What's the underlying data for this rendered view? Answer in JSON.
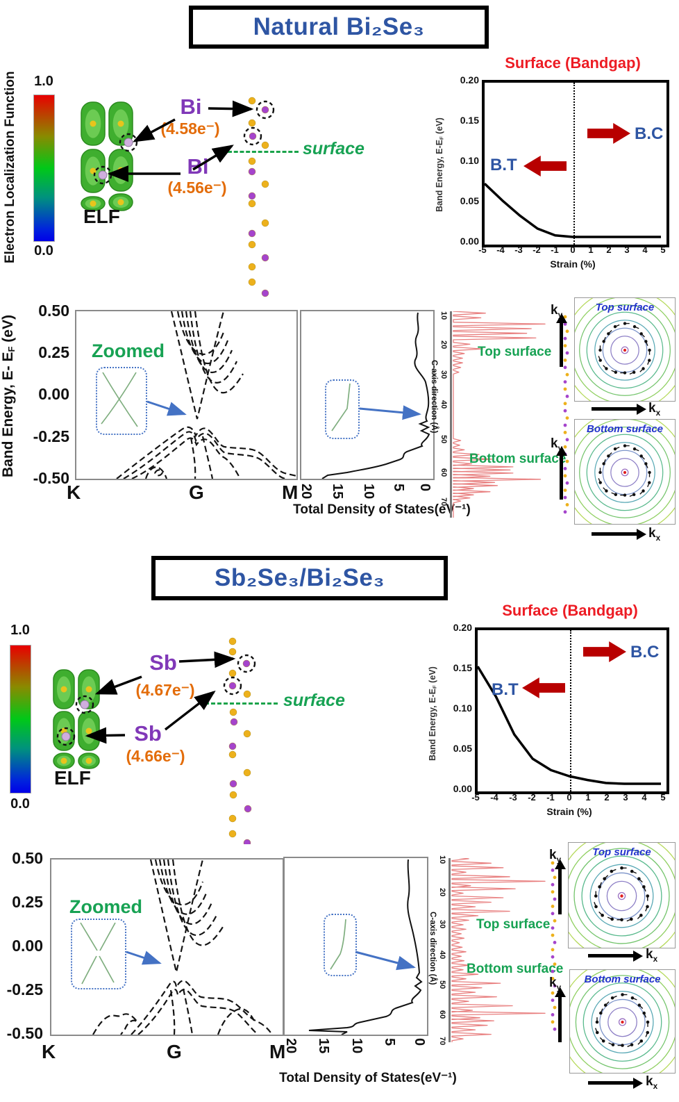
{
  "colors": {
    "accent_blue": "#2e55a3",
    "title_red": "#ed1c24",
    "arrow_red": "#b80000",
    "green": "#17a253",
    "element_purple": "#8038b8",
    "charge_orange": "#e36c09",
    "curve_salmon": "#e87f7f",
    "inset_blue": "#4472c4",
    "atom_yellow": "#edb11c",
    "atom_purple": "#a544cc"
  },
  "chart_data": [
    {
      "id": "strain_bandgap_natural",
      "type": "line",
      "title": "Surface (Bandgap)",
      "xlabel": "Strain (%)",
      "ylabel": "Band Energy, E-EF (eV)",
      "xlim": [
        -5,
        5
      ],
      "ylim": [
        0,
        0.2
      ],
      "grid": false,
      "x": [
        -5,
        -4,
        -3,
        -2,
        -1,
        0,
        1,
        2,
        3,
        4,
        5
      ],
      "y": [
        0.07,
        0.048,
        0.028,
        0.011,
        0.002,
        0,
        0,
        0,
        0,
        0,
        0
      ]
    },
    {
      "id": "strain_bandgap_hetero",
      "type": "line",
      "title": "Surface (Bandgap)",
      "xlabel": "Strain (%)",
      "ylabel": "Band Energy, E-EF (eV)",
      "xlim": [
        -5,
        5
      ],
      "ylim": [
        0,
        0.2
      ],
      "grid": false,
      "x": [
        -5,
        -4,
        -3,
        -2,
        -1,
        0,
        1,
        2,
        3,
        4,
        5
      ],
      "y": [
        0.155,
        0.115,
        0.065,
        0.033,
        0.018,
        0.01,
        0.005,
        0.001,
        0,
        0,
        0
      ]
    },
    {
      "id": "band_structure_natural",
      "type": "line",
      "xticklabels": [
        "K",
        "G",
        "M"
      ],
      "ylim": [
        -0.5,
        0.5
      ],
      "ylabel": "Band Energy, E- EF (eV)",
      "note": "dashed bulk bands; Dirac crossing of surface states at G near -0.14 eV"
    },
    {
      "id": "band_structure_hetero",
      "type": "line",
      "xticklabels": [
        "K",
        "G",
        "M"
      ],
      "ylim": [
        -0.5,
        0.5
      ],
      "note": "dashed bulk bands; small-gap Dirac cone of surface states at G near -0.14 eV"
    },
    {
      "id": "dos_natural",
      "type": "line",
      "xlabel": "Total Density of States(eV⁻¹)",
      "xlim": [
        20,
        0
      ],
      "note": "DOS vs energy, axis reversed (20 left, 0 right); minimum near Dirac point"
    },
    {
      "id": "dos_hetero",
      "type": "line",
      "xlabel": "Total Density of States(eV⁻¹)",
      "xlim": [
        20,
        0
      ],
      "note": "DOS vs energy, axis reversed (20 left, 0 right); minimum near Dirac point"
    },
    {
      "id": "charge_caxis_natural",
      "type": "line",
      "ylabel": "C-axis direction (Å)",
      "ylim": [
        8,
        70
      ],
      "annotations": [
        "Top surface",
        "Bottom surface"
      ],
      "peaks_A_amp": [
        [
          9,
          0.35
        ],
        [
          10.5,
          0.3
        ],
        [
          12.5,
          1.0
        ],
        [
          14,
          0.85
        ],
        [
          15.5,
          0.8
        ],
        [
          17,
          0.9
        ],
        [
          19,
          0.18
        ],
        [
          20.5,
          0.32
        ],
        [
          22,
          0.12
        ],
        [
          23.5,
          0.1
        ],
        [
          25,
          0.1
        ],
        [
          26.5,
          0.08
        ],
        [
          28,
          0.06
        ],
        [
          50,
          0.08
        ],
        [
          51.5,
          0.07
        ],
        [
          53,
          0.12
        ],
        [
          54.5,
          0.28
        ],
        [
          56,
          0.42
        ],
        [
          57.5,
          0.2
        ],
        [
          58.5,
          0.65
        ],
        [
          59.5,
          0.62
        ],
        [
          60.5,
          0.65
        ],
        [
          61.5,
          0.4
        ],
        [
          62.5,
          0.95
        ],
        [
          63.5,
          0.45
        ],
        [
          64.5,
          0.48
        ],
        [
          65.5,
          0.22
        ],
        [
          66.5,
          0.4
        ],
        [
          67.5,
          0.22
        ],
        [
          68.5,
          0.18
        ],
        [
          69.5,
          0.08
        ]
      ]
    },
    {
      "id": "charge_caxis_hetero",
      "type": "line",
      "ylabel": "C-axis direction (Å)",
      "ylim": [
        9,
        70
      ],
      "annotations": [
        "Top surface",
        "Bottom surface"
      ],
      "peaks_A_amp": [
        [
          9.5,
          0.18
        ],
        [
          11,
          0.42
        ],
        [
          12.5,
          0.55
        ],
        [
          14,
          0.15
        ],
        [
          15.5,
          0.62
        ],
        [
          17,
          1.0
        ],
        [
          18.5,
          0.2
        ],
        [
          19.5,
          0.68
        ],
        [
          21,
          0.12
        ],
        [
          22.5,
          0.55
        ],
        [
          24,
          0.42
        ],
        [
          25.5,
          0.25
        ],
        [
          27,
          0.62
        ],
        [
          28.5,
          0.28
        ],
        [
          30,
          0.18
        ],
        [
          31.5,
          0.12
        ],
        [
          33,
          0.15
        ],
        [
          34.5,
          0.1
        ],
        [
          36,
          0.13
        ],
        [
          37.5,
          0.08
        ],
        [
          39,
          0.11
        ],
        [
          40.5,
          0.15
        ],
        [
          42,
          0.1
        ],
        [
          43.5,
          0.13
        ],
        [
          45,
          0.18
        ],
        [
          46.5,
          0.12
        ],
        [
          48,
          0.28
        ],
        [
          49.5,
          0.15
        ],
        [
          51,
          0.52
        ],
        [
          52.5,
          0.32
        ],
        [
          54,
          0.25
        ],
        [
          55.5,
          0.48
        ],
        [
          57,
          0.18
        ],
        [
          58.5,
          0.65
        ],
        [
          60,
          0.22
        ],
        [
          61,
          1.0
        ],
        [
          62.5,
          0.3
        ],
        [
          63.5,
          0.45
        ],
        [
          65,
          0.38
        ],
        [
          66.5,
          0.25
        ],
        [
          68,
          0.42
        ],
        [
          69.5,
          0.12
        ]
      ]
    }
  ],
  "sections": [
    {
      "title": "Natural Bi₂Se₃",
      "elf": {
        "axis_label": "Electron Localization Function",
        "cb_max": "1.0",
        "cb_min": "0.0",
        "label": "ELF",
        "atom1_symbol": "Bi",
        "atom1_charge": "(4.58e⁻)",
        "atom2_symbol": "Bi",
        "atom2_charge": "(4.56e⁻)",
        "surface_label": "surface"
      },
      "strain": {
        "title": "Surface (Bandgap)",
        "ylabel_pre": "Band Energy, E-E",
        "ylabel_sub": "F",
        "ylabel_post": " (eV)",
        "xlabel": "Strain (%)",
        "yticks": [
          "0.20",
          "0.15",
          "0.10",
          "0.05",
          "0.00"
        ],
        "xticks": [
          "-5",
          "-4",
          "-3",
          "-2",
          "-1",
          "0",
          "1",
          "2",
          "3",
          "4",
          "5"
        ],
        "left_label": "B.T",
        "right_label": "B.C"
      },
      "band": {
        "ylabel_pre": "Band Energy, E- E",
        "ylabel_sub": "F",
        "ylabel_post": " (eV)",
        "yticks": [
          "0.50",
          "0.25",
          "0.00",
          "-0.25",
          "-0.50"
        ],
        "k1": "K",
        "k2": "G",
        "k3": "M",
        "inset_label": "Zoomed"
      },
      "dos": {
        "xticks": [
          "20",
          "15",
          "10",
          "5",
          "0"
        ],
        "xlabel": "Total Density of States(eV⁻¹)"
      },
      "caxis": {
        "label": "C-axis direction (Å)",
        "ticks": [
          "10",
          "20",
          "30",
          "40",
          "50",
          "60",
          "70"
        ],
        "top_label": "Top surface",
        "bottom_label": "Bottom surface"
      },
      "fermi_top": {
        "title": "Top surface",
        "k": "k",
        "kx_sub": "x",
        "ky_sub": "y"
      },
      "fermi_bottom": {
        "title": "Bottom surface",
        "k": "k",
        "kx_sub": "x",
        "ky_sub": "y"
      }
    },
    {
      "title": "Sb₂Se₃/Bi₂Se₃",
      "elf": {
        "cb_max": "1.0",
        "cb_min": "0.0",
        "label": "ELF",
        "atom1_symbol": "Sb",
        "atom1_charge": "(4.67e⁻)",
        "atom2_symbol": "Sb",
        "atom2_charge": "(4.66e⁻)",
        "surface_label": "surface"
      },
      "strain": {
        "title": "Surface (Bandgap)",
        "ylabel_pre": "Band Energy, E-E",
        "ylabel_sub": "F",
        "ylabel_post": " (eV)",
        "xlabel": "Strain (%)",
        "yticks": [
          "0.20",
          "0.15",
          "0.10",
          "0.05",
          "0.00"
        ],
        "xticks": [
          "-5",
          "-4",
          "-3",
          "-2",
          "-1",
          "0",
          "1",
          "2",
          "3",
          "4",
          "5"
        ],
        "left_label": "B.T",
        "right_label": "B.C"
      },
      "band": {
        "yticks": [
          "0.50",
          "0.25",
          "0.00",
          "-0.25",
          "-0.50"
        ],
        "k1": "K",
        "k2": "G",
        "k3": "M",
        "inset_label": "Zoomed"
      },
      "dos": {
        "xticks": [
          "20",
          "15",
          "10",
          "5",
          "0"
        ],
        "xlabel": "Total Density of States(eV⁻¹)"
      },
      "caxis": {
        "label": "C-axis direction (Å)",
        "ticks": [
          "10",
          "20",
          "30",
          "40",
          "50",
          "60",
          "70"
        ],
        "top_label": "Top surface",
        "bottom_label": "Bottom surface"
      },
      "fermi_top": {
        "title": "Top surface",
        "k": "k",
        "kx_sub": "x",
        "ky_sub": "y"
      },
      "fermi_bottom": {
        "title": "Bottom surface",
        "k": "k",
        "kx_sub": "x",
        "ky_sub": "y"
      }
    }
  ]
}
